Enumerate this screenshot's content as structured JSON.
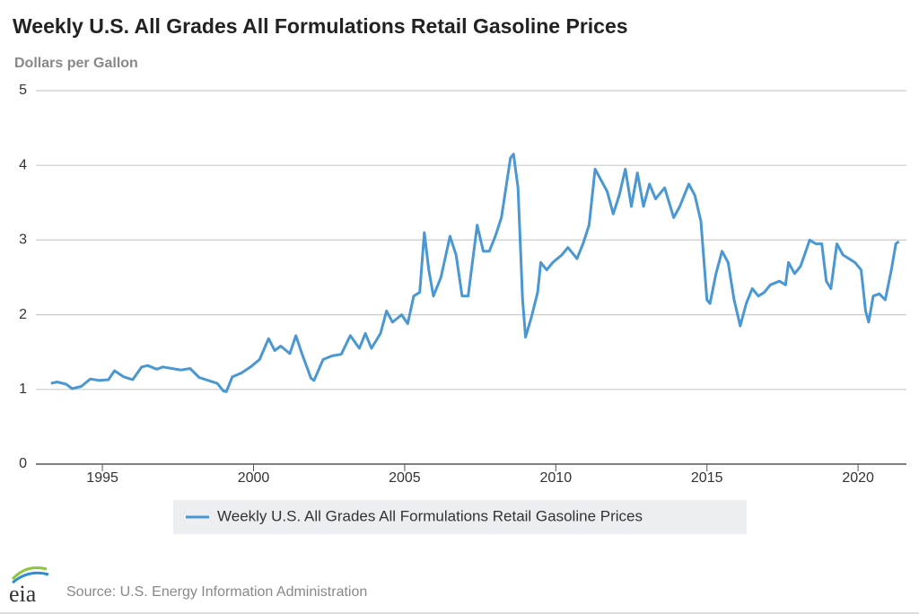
{
  "chart_data": {
    "type": "line",
    "title": "Weekly U.S. All Grades All Formulations Retail Gasoline Prices",
    "y_label": "Dollars per Gallon",
    "source": "Source: U.S. Energy Information Administration",
    "logo": "eia",
    "x": [
      1993.3,
      1993.5,
      1993.8,
      1994.0,
      1994.3,
      1994.6,
      1994.9,
      1995.2,
      1995.4,
      1995.7,
      1996.0,
      1996.3,
      1996.5,
      1996.8,
      1997.0,
      1997.3,
      1997.6,
      1997.9,
      1998.2,
      1998.5,
      1998.8,
      1999.0,
      1999.1,
      1999.3,
      1999.6,
      1999.9,
      2000.2,
      2000.5,
      2000.7,
      2000.9,
      2001.2,
      2001.4,
      2001.6,
      2001.9,
      2002.0,
      2002.3,
      2002.6,
      2002.9,
      2003.2,
      2003.5,
      2003.7,
      2003.9,
      2004.2,
      2004.4,
      2004.6,
      2004.9,
      2005.1,
      2005.3,
      2005.5,
      2005.65,
      2005.8,
      2005.95,
      2006.2,
      2006.5,
      2006.7,
      2006.9,
      2007.1,
      2007.4,
      2007.6,
      2007.8,
      2008.0,
      2008.2,
      2008.5,
      2008.6,
      2008.75,
      2008.9,
      2009.0,
      2009.2,
      2009.4,
      2009.5,
      2009.7,
      2009.9,
      2010.2,
      2010.4,
      2010.7,
      2010.9,
      2011.1,
      2011.3,
      2011.5,
      2011.7,
      2011.9,
      2012.1,
      2012.3,
      2012.5,
      2012.7,
      2012.9,
      2013.1,
      2013.3,
      2013.6,
      2013.9,
      2014.1,
      2014.4,
      2014.6,
      2014.8,
      2015.0,
      2015.1,
      2015.3,
      2015.5,
      2015.7,
      2015.9,
      2016.1,
      2016.3,
      2016.5,
      2016.7,
      2016.9,
      2017.1,
      2017.4,
      2017.6,
      2017.7,
      2017.9,
      2018.1,
      2018.4,
      2018.6,
      2018.8,
      2018.95,
      2019.1,
      2019.3,
      2019.5,
      2019.7,
      2019.9,
      2020.1,
      2020.25,
      2020.35,
      2020.5,
      2020.7,
      2020.9,
      2021.1,
      2021.25,
      2021.35
    ],
    "series": [
      {
        "name": "Weekly U.S. All Grades All Formulations Retail Gasoline Prices",
        "color": "#4a97d2",
        "values": [
          1.08,
          1.1,
          1.07,
          1.01,
          1.04,
          1.14,
          1.12,
          1.13,
          1.25,
          1.17,
          1.13,
          1.3,
          1.32,
          1.27,
          1.3,
          1.28,
          1.26,
          1.28,
          1.16,
          1.12,
          1.08,
          0.98,
          0.97,
          1.17,
          1.22,
          1.3,
          1.4,
          1.68,
          1.52,
          1.58,
          1.48,
          1.72,
          1.48,
          1.15,
          1.12,
          1.4,
          1.45,
          1.47,
          1.72,
          1.55,
          1.75,
          1.55,
          1.75,
          2.05,
          1.9,
          2.0,
          1.88,
          2.25,
          2.3,
          3.1,
          2.6,
          2.25,
          2.5,
          3.05,
          2.8,
          2.25,
          2.25,
          3.2,
          2.85,
          2.85,
          3.05,
          3.3,
          4.1,
          4.15,
          3.7,
          2.2,
          1.7,
          1.98,
          2.3,
          2.7,
          2.6,
          2.7,
          2.8,
          2.9,
          2.75,
          2.95,
          3.2,
          3.95,
          3.8,
          3.65,
          3.35,
          3.6,
          3.95,
          3.45,
          3.9,
          3.45,
          3.75,
          3.55,
          3.7,
          3.3,
          3.45,
          3.75,
          3.6,
          3.25,
          2.2,
          2.15,
          2.55,
          2.85,
          2.7,
          2.2,
          1.85,
          2.15,
          2.35,
          2.25,
          2.3,
          2.4,
          2.45,
          2.4,
          2.7,
          2.55,
          2.65,
          3.0,
          2.95,
          2.95,
          2.45,
          2.35,
          2.95,
          2.8,
          2.75,
          2.7,
          2.6,
          2.05,
          1.9,
          2.25,
          2.28,
          2.2,
          2.6,
          2.95,
          2.98
        ]
      }
    ],
    "xlim": [
      1992.8,
      2021.6
    ],
    "xticks": [
      1995,
      2000,
      2005,
      2010,
      2015,
      2020
    ],
    "ylim": [
      0,
      5
    ],
    "yticks": [
      0,
      1,
      2,
      3,
      4,
      5
    ],
    "grid": true
  }
}
